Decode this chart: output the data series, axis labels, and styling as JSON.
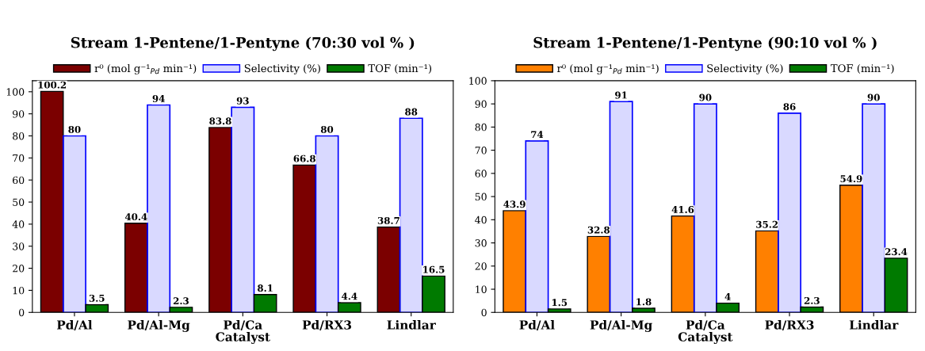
{
  "chart_data": [
    {
      "type": "bar",
      "title": "Stream 1-Pentene/1-Pentyne (70:30 vol % )",
      "xlabel": "Catalyst",
      "categories": [
        "Pd/Al",
        "Pd/Al-Mg",
        "Pd/Ca",
        "Pd/RX3",
        "Lindlar"
      ],
      "series": [
        {
          "name": "r⁰ (mol g⁻¹$_{Pd}$ min⁻¹)",
          "color": "#7b0000",
          "values": [
            100.2,
            40.4,
            83.8,
            66.8,
            38.7
          ]
        },
        {
          "name": "Selectivity (%)",
          "color": "#0000ff",
          "values": [
            80,
            94,
            93,
            80,
            88
          ]
        },
        {
          "name": "TOF (min⁻¹)",
          "color": "#007a00",
          "values": [
            3.5,
            2.3,
            8.1,
            4.4,
            16.5
          ]
        }
      ],
      "ylim": [
        0,
        105
      ],
      "yticks": [
        0,
        10,
        20,
        30,
        40,
        50,
        60,
        70,
        80,
        90,
        100
      ],
      "data_labels": true,
      "legend": "top",
      "grid": false
    },
    {
      "type": "bar",
      "title": "Stream 1-Pentene/1-Pentyne (90:10 vol % )",
      "xlabel": "Catalyst",
      "categories": [
        "Pd/Al",
        "Pd/Al-Mg",
        "Pd/Ca",
        "Pd/RX3",
        "Lindlar"
      ],
      "series": [
        {
          "name": "r⁰ (mol g⁻¹$_{Pd}$ min⁻¹)",
          "color": "#ff8000",
          "values": [
            43.9,
            32.8,
            41.6,
            35.2,
            54.9
          ]
        },
        {
          "name": "Selectivity (%)",
          "color": "#0000ff",
          "values": [
            74,
            91,
            90,
            86,
            90
          ]
        },
        {
          "name": "TOF (min⁻¹)",
          "color": "#007a00",
          "values": [
            1.5,
            1.8,
            4,
            2.3,
            23.4
          ]
        }
      ],
      "ylim": [
        0,
        100
      ],
      "yticks": [
        0,
        10,
        20,
        30,
        40,
        50,
        60,
        70,
        80,
        90,
        100
      ],
      "data_labels": true,
      "legend": "top",
      "grid": false
    }
  ]
}
